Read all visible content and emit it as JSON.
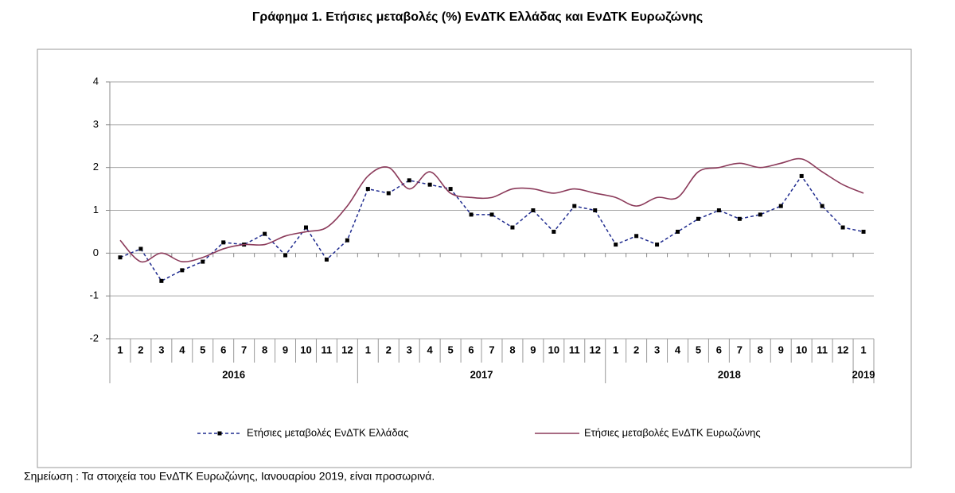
{
  "chart_data": {
    "type": "line",
    "title": "Γράφημα 1. Ετήσιες μεταβολές (%) ΕνΔΤΚ Ελλάδας και ΕνΔΤΚ Ευρωζώνης",
    "categories": [
      "1",
      "2",
      "3",
      "4",
      "5",
      "6",
      "7",
      "8",
      "9",
      "10",
      "11",
      "12",
      "1",
      "2",
      "3",
      "4",
      "5",
      "6",
      "7",
      "8",
      "9",
      "10",
      "11",
      "12",
      "1",
      "2",
      "3",
      "4",
      "5",
      "6",
      "7",
      "8",
      "9",
      "10",
      "11",
      "12",
      "1"
    ],
    "years": [
      "2016",
      "2017",
      "2018",
      "2019"
    ],
    "series": [
      {
        "name": "Ετήσιες μεταβολές ΕνΔΤΚ Ελλάδας",
        "color": "#1f2b8f",
        "style": "dashed-markers",
        "values": [
          -0.1,
          0.1,
          -0.65,
          -0.4,
          -0.2,
          0.25,
          0.2,
          0.45,
          -0.05,
          0.6,
          -0.15,
          0.3,
          1.5,
          1.4,
          1.7,
          1.6,
          1.5,
          0.9,
          0.9,
          0.6,
          1.0,
          0.5,
          1.1,
          1.0,
          0.2,
          0.4,
          0.2,
          0.5,
          0.8,
          1.0,
          0.8,
          0.9,
          1.1,
          1.8,
          1.1,
          0.6,
          0.5
        ]
      },
      {
        "name": "Ετήσιες μεταβολές ΕνΔΤΚ Ευρωζώνης",
        "color": "#8b3a5a",
        "style": "smooth",
        "values": [
          0.3,
          -0.2,
          0.0,
          -0.2,
          -0.1,
          0.1,
          0.2,
          0.2,
          0.4,
          0.5,
          0.6,
          1.1,
          1.8,
          2.0,
          1.5,
          1.9,
          1.4,
          1.3,
          1.3,
          1.5,
          1.5,
          1.4,
          1.5,
          1.4,
          1.3,
          1.1,
          1.3,
          1.3,
          1.9,
          2.0,
          2.1,
          2.0,
          2.1,
          2.2,
          1.9,
          1.6,
          1.4
        ]
      }
    ],
    "ylim": [
      -2,
      4
    ],
    "yticks": [
      -2,
      -1,
      0,
      1,
      2,
      3,
      4
    ],
    "grid": true,
    "note": "Σημείωση :  Τα στοιχεία του ΕνΔΤΚ Ευρωζώνης, Ιανουαρίου 2019, είναι προσωρινά."
  }
}
